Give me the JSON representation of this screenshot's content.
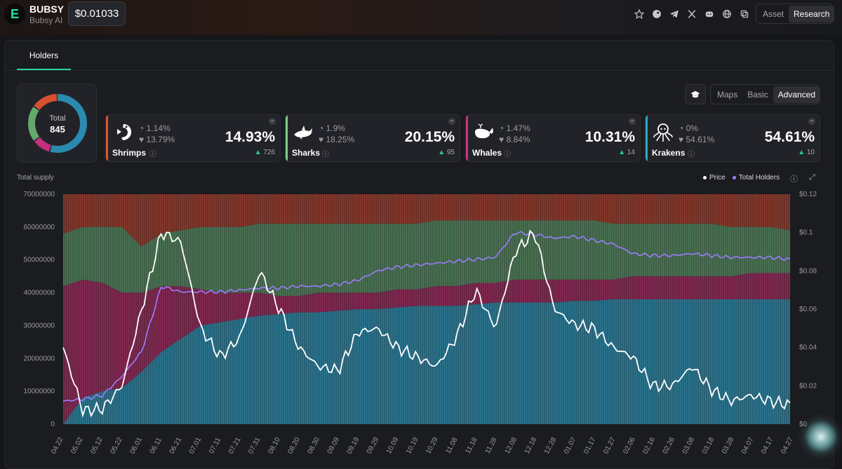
{
  "header": {
    "logo_letter": "E",
    "token_name": "BUBSY",
    "token_sub": "Bubsy AI",
    "price": "$0.01033",
    "icons": [
      "star-icon",
      "coingecko-icon",
      "telegram-icon",
      "x-icon",
      "discord-icon",
      "globe-icon",
      "copy-icon"
    ],
    "tabs": [
      {
        "label": "Asset",
        "active": false
      },
      {
        "label": "Research",
        "active": true
      }
    ]
  },
  "page_tab": "Holders",
  "donut": {
    "title": "Total",
    "value": "845",
    "segments": [
      {
        "name": "Krakens",
        "value": 54.61,
        "color": "#2b8ab0"
      },
      {
        "name": "Whales",
        "value": 10.31,
        "color": "#c2307e"
      },
      {
        "name": "Sharks",
        "value": 20.15,
        "color": "#63a96a"
      },
      {
        "name": "Shrimps",
        "value": 14.93,
        "color": "#d8512f"
      }
    ]
  },
  "categories": [
    {
      "name": "Shrimps",
      "icon": "shrimp-icon",
      "stat1": "1.14%",
      "stat2": "13.79%",
      "percent": "14.93%",
      "delta": "726",
      "color": "#e0542e"
    },
    {
      "name": "Sharks",
      "icon": "shark-icon",
      "stat1": "1.9%",
      "stat2": "18.25%",
      "percent": "20.15%",
      "delta": "95",
      "color": "#7ccf8a"
    },
    {
      "name": "Whales",
      "icon": "whale-icon",
      "stat1": "1.47%",
      "stat2": "8.84%",
      "percent": "10.31%",
      "delta": "14",
      "color": "#d2307e"
    },
    {
      "name": "Krakens",
      "icon": "kraken-icon",
      "stat1": "0%",
      "stat2": "54.61%",
      "percent": "54.61%",
      "delta": "10",
      "color": "#2aa7c8"
    }
  ],
  "view_tabs": [
    {
      "label": "Maps",
      "active": false
    },
    {
      "label": "Basic",
      "active": false
    },
    {
      "label": "Advanced",
      "active": true
    }
  ],
  "chart_label": "Total supply",
  "legend": [
    {
      "label": "Price",
      "color": "#ffffff"
    },
    {
      "label": "Total Holders",
      "color": "#9b7cff"
    }
  ],
  "chart_data": {
    "type": "area",
    "y_ticks": [
      "0",
      "10000000",
      "20000000",
      "30000000",
      "40000000",
      "50000000",
      "60000000",
      "70000000"
    ],
    "y2_ticks": [
      "$0",
      "$0.02",
      "$0.04",
      "$0.06",
      "$0.08",
      "$0.1",
      "$0.12"
    ],
    "x_ticks": [
      "04.22",
      "05.02",
      "05.12",
      "05.22",
      "06.01",
      "06.11",
      "06.21",
      "07.01",
      "07.11",
      "07.21",
      "07.31",
      "08.10",
      "08.20",
      "08.30",
      "09.09",
      "09.19",
      "09.29",
      "10.09",
      "10.19",
      "10.29",
      "11.08",
      "11.18",
      "11.28",
      "12.08",
      "12.18",
      "12.28",
      "01.07",
      "01.17",
      "01.27",
      "02.06",
      "02.16",
      "02.26",
      "03.08",
      "03.18",
      "03.28",
      "04.07",
      "04.17",
      "04.27"
    ],
    "ylim": [
      0,
      70000000
    ],
    "y2lim": [
      0,
      0.12
    ],
    "bands_order": [
      "Krakens",
      "Whales",
      "Sharks",
      "Shrimps"
    ],
    "band_colors": {
      "Krakens": "#2d7c97",
      "Whales": "#8a2a55",
      "Sharks": "#4f7a57",
      "Shrimps": "#8e3a2c"
    },
    "krakens": [
      0,
      8,
      10,
      11,
      16,
      22,
      26,
      30,
      31,
      32,
      33,
      33.5,
      34,
      34,
      34.5,
      35,
      35,
      35.5,
      36,
      36,
      36,
      36.5,
      37,
      37,
      37,
      37,
      37.5,
      37.5,
      38,
      38,
      38,
      38,
      38,
      38,
      38,
      38,
      38,
      38
    ],
    "whales": [
      42,
      44,
      43,
      40,
      40,
      42,
      42,
      41,
      40,
      40,
      40,
      39,
      39,
      40,
      40,
      40,
      40,
      41,
      41,
      42,
      42,
      43,
      43,
      44,
      44,
      44,
      44,
      44,
      44,
      45,
      45,
      45,
      45,
      45,
      45,
      46,
      46,
      46
    ],
    "sharks": [
      58,
      60,
      60,
      60,
      54,
      58,
      59,
      60,
      60,
      60,
      61,
      61,
      61,
      61,
      61,
      61,
      61,
      61,
      61,
      62,
      62,
      62,
      62,
      62,
      62,
      62,
      62,
      62,
      61,
      61,
      61,
      61,
      61,
      61,
      60,
      60,
      60,
      59
    ],
    "shrimps": [
      70,
      70,
      70,
      70,
      70,
      70,
      70,
      70,
      70,
      70,
      70,
      70,
      70,
      70,
      70,
      70,
      70,
      70,
      70,
      70,
      70,
      70,
      70,
      70,
      70,
      70,
      70,
      70,
      70,
      70,
      70,
      70,
      70,
      70,
      70,
      70,
      70,
      70
    ],
    "price": [
      0.04,
      0.007,
      0.008,
      0.02,
      0.06,
      0.1,
      0.095,
      0.05,
      0.035,
      0.045,
      0.08,
      0.06,
      0.04,
      0.03,
      0.028,
      0.048,
      0.05,
      0.04,
      0.035,
      0.03,
      0.045,
      0.07,
      0.05,
      0.09,
      0.1,
      0.06,
      0.052,
      0.05,
      0.04,
      0.035,
      0.02,
      0.02,
      0.03,
      0.018,
      0.012,
      0.015,
      0.012,
      0.01
    ],
    "total_holders": [
      0.012,
      0.013,
      0.015,
      0.025,
      0.038,
      0.072,
      0.069,
      0.069,
      0.069,
      0.07,
      0.071,
      0.071,
      0.072,
      0.072,
      0.073,
      0.075,
      0.08,
      0.082,
      0.083,
      0.084,
      0.085,
      0.086,
      0.087,
      0.1,
      0.099,
      0.097,
      0.098,
      0.096,
      0.094,
      0.089,
      0.088,
      0.088,
      0.089,
      0.088,
      0.087,
      0.087,
      0.087,
      0.086
    ]
  }
}
